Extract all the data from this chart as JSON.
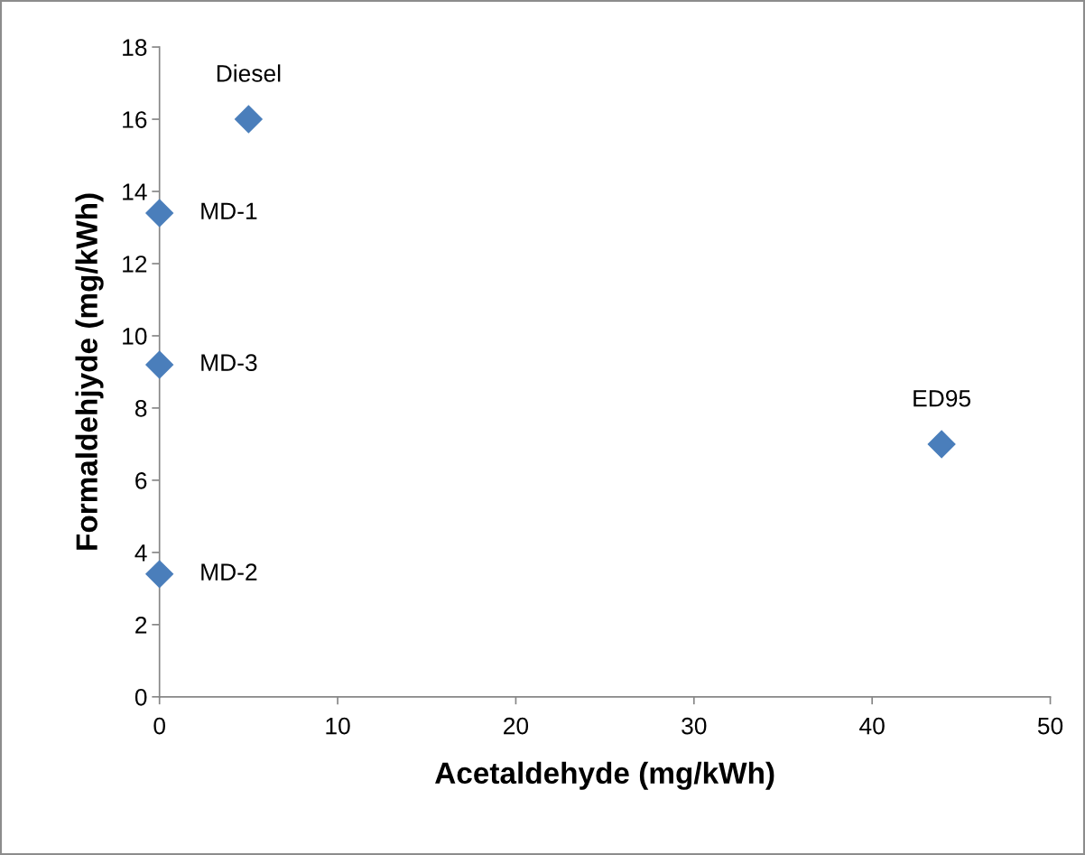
{
  "chart_data": {
    "type": "scatter",
    "xlabel": "Acetaldehyde (mg/kWh)",
    "ylabel": "Formaldehjyde (mg/kWh)",
    "x": [
      5,
      0,
      0,
      0,
      43.9
    ],
    "series": [
      {
        "color": "#4a7ebb",
        "values": [
          16.0,
          13.4,
          9.2,
          3.4,
          7.0
        ]
      }
    ],
    "marker": "diamond",
    "xlim": [
      0,
      50
    ],
    "xticks": [
      0,
      10,
      20,
      30,
      40,
      50
    ],
    "ylim": [
      0,
      18
    ],
    "yticks": [
      0,
      2,
      4,
      6,
      8,
      10,
      12,
      14,
      16,
      18
    ],
    "grid": false,
    "legend": false,
    "annotations": [
      {
        "text": "Diesel",
        "x": 5,
        "y": 16.0
      },
      {
        "text": "MD-1",
        "x": 0,
        "y": 13.4
      },
      {
        "text": "MD-3",
        "x": 0,
        "y": 9.2
      },
      {
        "text": "MD-2",
        "x": 0,
        "y": 3.4
      },
      {
        "text": "ED95",
        "x": 43.9,
        "y": 7.0
      }
    ]
  }
}
